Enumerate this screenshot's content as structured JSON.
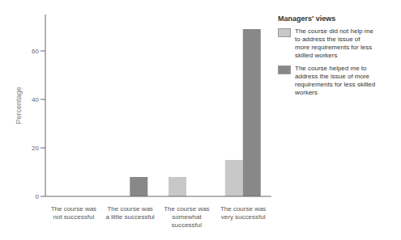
{
  "chart_data": {
    "type": "bar",
    "categories": [
      "The course was\nnot successful",
      "The course was\na little successful",
      "The course was\nsomewhat\nsuccessful",
      "The course was\nvery successful"
    ],
    "series": [
      {
        "name": "The course did not help me\nto address the issue of\nmore requirements for less\nskilled workers",
        "values": [
          0,
          0,
          8,
          15
        ],
        "color": "#c8c8c8"
      },
      {
        "name": "The course helped me to\naddress the issue of more\nrequirements for less skilled\nworkers",
        "values": [
          0,
          8,
          0,
          69
        ],
        "color": "#888888"
      }
    ],
    "ylabel": "Percentage",
    "ylim": [
      0,
      75
    ],
    "yticks": [
      0,
      20,
      40,
      60
    ],
    "legend_title": "Managers' views",
    "legend": "upper right",
    "grid": false
  }
}
